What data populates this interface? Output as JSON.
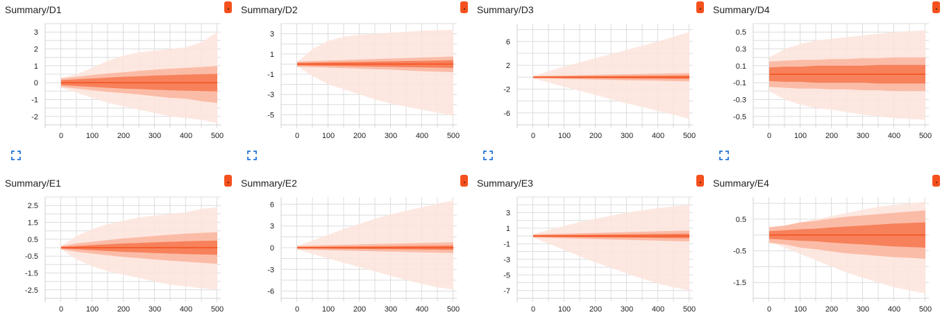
{
  "colors": {
    "accent": "#f4511e",
    "band_outer": "#fde4dc",
    "band_mid": "#f9a98f",
    "band_inner": "#f4511e"
  },
  "icons": {
    "badge": "caption-badge-icon",
    "expand": "fullscreen-expand-icon"
  },
  "chart_data": [
    {
      "type": "area",
      "title": "Summary/D1",
      "xlim": [
        0,
        500
      ],
      "ylim": [
        -2.5,
        3.5
      ],
      "x": [
        0,
        50,
        100,
        150,
        200,
        250,
        300,
        350,
        400,
        450,
        500
      ],
      "x_ticks": [
        0,
        100,
        200,
        300,
        400,
        500
      ],
      "y_ticks": [
        3,
        2,
        1,
        0,
        -1,
        -2
      ],
      "series": [
        {
          "upper": [
            0.3,
            0.5,
            0.9,
            1.3,
            1.6,
            1.8,
            1.9,
            2.0,
            2.1,
            2.4,
            3.0
          ],
          "lower": [
            -0.3,
            -0.6,
            -0.9,
            -1.2,
            -1.4,
            -1.6,
            -1.8,
            -2.0,
            -2.1,
            -2.2,
            -2.4
          ]
        },
        {
          "upper": [
            0.25,
            0.35,
            0.45,
            0.55,
            0.62,
            0.7,
            0.77,
            0.83,
            0.88,
            0.93,
            0.98
          ],
          "lower": [
            -0.25,
            -0.35,
            -0.45,
            -0.55,
            -0.62,
            -0.7,
            -0.8,
            -0.9,
            -0.95,
            -1.1,
            -1.2
          ]
        },
        {
          "upper": [
            0.15,
            0.2,
            0.25,
            0.3,
            0.35,
            0.38,
            0.42,
            0.45,
            0.48,
            0.5,
            0.52
          ],
          "lower": [
            -0.15,
            -0.2,
            -0.25,
            -0.3,
            -0.35,
            -0.38,
            -0.42,
            -0.45,
            -0.48,
            -0.5,
            -0.52
          ]
        }
      ]
    },
    {
      "type": "area",
      "title": "Summary/D2",
      "xlim": [
        0,
        500
      ],
      "ylim": [
        -6,
        4
      ],
      "x": [
        0,
        50,
        100,
        150,
        200,
        250,
        300,
        350,
        400,
        450,
        500
      ],
      "x_ticks": [
        0,
        100,
        200,
        300,
        400,
        500
      ],
      "y_ticks": [
        3,
        1,
        -1,
        -3,
        -5
      ],
      "series": [
        {
          "upper": [
            0.2,
            1.5,
            2.3,
            2.7,
            2.9,
            3.0,
            3.1,
            3.2,
            3.3,
            3.35,
            3.4
          ],
          "lower": [
            -0.2,
            -1.2,
            -2.0,
            -2.5,
            -3.0,
            -3.5,
            -3.9,
            -4.2,
            -4.5,
            -4.8,
            -5.1
          ]
        },
        {
          "upper": [
            0.25,
            0.3,
            0.35,
            0.4,
            0.45,
            0.5,
            0.55,
            0.6,
            0.65,
            0.7,
            0.75
          ],
          "lower": [
            -0.25,
            -0.3,
            -0.35,
            -0.4,
            -0.45,
            -0.5,
            -0.55,
            -0.62,
            -0.7,
            -0.75,
            -0.8
          ]
        },
        {
          "upper": [
            0.12,
            0.15,
            0.18,
            0.2,
            0.22,
            0.25,
            0.27,
            0.3,
            0.32,
            0.35,
            0.38
          ],
          "lower": [
            -0.12,
            -0.15,
            -0.18,
            -0.2,
            -0.22,
            -0.25,
            -0.27,
            -0.3,
            -0.32,
            -0.35,
            -0.38
          ]
        }
      ]
    },
    {
      "type": "area",
      "title": "Summary/D3",
      "xlim": [
        0,
        500
      ],
      "ylim": [
        -8,
        9
      ],
      "x": [
        0,
        50,
        100,
        150,
        200,
        250,
        300,
        350,
        400,
        450,
        500
      ],
      "x_ticks": [
        0,
        100,
        200,
        300,
        400,
        500
      ],
      "y_ticks": [
        6,
        2,
        -2,
        -6
      ],
      "series": [
        {
          "upper": [
            0.2,
            1.0,
            1.8,
            2.5,
            3.2,
            3.9,
            4.6,
            5.3,
            6.0,
            6.8,
            7.6
          ],
          "lower": [
            -0.2,
            -0.9,
            -1.6,
            -2.3,
            -3.0,
            -3.7,
            -4.4,
            -5.0,
            -5.7,
            -6.3,
            -7.0
          ]
        },
        {
          "upper": [
            0.2,
            0.25,
            0.3,
            0.35,
            0.4,
            0.45,
            0.5,
            0.55,
            0.6,
            0.65,
            0.7
          ],
          "lower": [
            -0.2,
            -0.25,
            -0.3,
            -0.35,
            -0.4,
            -0.45,
            -0.5,
            -0.55,
            -0.6,
            -0.65,
            -0.7
          ]
        },
        {
          "upper": [
            0.1,
            0.12,
            0.14,
            0.16,
            0.18,
            0.2,
            0.22,
            0.24,
            0.26,
            0.28,
            0.3
          ],
          "lower": [
            -0.1,
            -0.12,
            -0.14,
            -0.16,
            -0.18,
            -0.2,
            -0.22,
            -0.24,
            -0.26,
            -0.28,
            -0.3
          ]
        }
      ]
    },
    {
      "type": "area",
      "title": "Summary/D4",
      "xlim": [
        0,
        500
      ],
      "ylim": [
        -0.6,
        0.6
      ],
      "x": [
        0,
        50,
        100,
        150,
        200,
        250,
        300,
        350,
        400,
        450,
        500
      ],
      "x_ticks": [
        0,
        100,
        200,
        300,
        400,
        500
      ],
      "y_ticks": [
        0.5,
        0.3,
        0.1,
        -0.1,
        -0.3,
        -0.5
      ],
      "series": [
        {
          "upper": [
            0.2,
            0.3,
            0.36,
            0.4,
            0.42,
            0.44,
            0.46,
            0.48,
            0.5,
            0.51,
            0.52
          ],
          "lower": [
            -0.2,
            -0.3,
            -0.36,
            -0.4,
            -0.42,
            -0.45,
            -0.48,
            -0.5,
            -0.52,
            -0.53,
            -0.54
          ]
        },
        {
          "upper": [
            0.15,
            0.16,
            0.17,
            0.17,
            0.18,
            0.18,
            0.19,
            0.19,
            0.2,
            0.2,
            0.2
          ],
          "lower": [
            -0.15,
            -0.16,
            -0.17,
            -0.17,
            -0.18,
            -0.18,
            -0.19,
            -0.19,
            -0.2,
            -0.2,
            -0.2
          ]
        },
        {
          "upper": [
            0.08,
            0.09,
            0.09,
            0.1,
            0.1,
            0.1,
            0.1,
            0.11,
            0.11,
            0.11,
            0.11
          ],
          "lower": [
            -0.08,
            -0.09,
            -0.09,
            -0.1,
            -0.1,
            -0.1,
            -0.1,
            -0.11,
            -0.11,
            -0.11,
            -0.11
          ]
        }
      ]
    },
    {
      "type": "area",
      "title": "Summary/E1",
      "xlim": [
        0,
        500
      ],
      "ylim": [
        -3,
        3
      ],
      "x": [
        0,
        50,
        100,
        150,
        200,
        250,
        300,
        350,
        400,
        450,
        500
      ],
      "x_ticks": [
        0,
        100,
        200,
        300,
        400,
        500
      ],
      "y_ticks": [
        2.5,
        1.5,
        0.5,
        -0.5,
        -1.5,
        -2.5
      ],
      "series": [
        {
          "upper": [
            0.1,
            0.7,
            1.1,
            1.4,
            1.6,
            1.8,
            1.9,
            2.0,
            2.1,
            2.3,
            2.4
          ],
          "lower": [
            -0.1,
            -0.7,
            -1.1,
            -1.4,
            -1.6,
            -1.8,
            -2.0,
            -2.2,
            -2.3,
            -2.4,
            -2.5
          ]
        },
        {
          "upper": [
            0.1,
            0.25,
            0.35,
            0.45,
            0.55,
            0.62,
            0.7,
            0.77,
            0.83,
            0.88,
            0.92
          ],
          "lower": [
            -0.1,
            -0.25,
            -0.35,
            -0.45,
            -0.55,
            -0.62,
            -0.7,
            -0.77,
            -0.83,
            -0.9,
            -0.95
          ]
        },
        {
          "upper": [
            0.05,
            0.1,
            0.15,
            0.2,
            0.25,
            0.28,
            0.32,
            0.35,
            0.38,
            0.4,
            0.42
          ],
          "lower": [
            -0.05,
            -0.1,
            -0.15,
            -0.2,
            -0.25,
            -0.28,
            -0.32,
            -0.35,
            -0.38,
            -0.4,
            -0.42
          ]
        }
      ]
    },
    {
      "type": "area",
      "title": "Summary/E2",
      "xlim": [
        0,
        500
      ],
      "ylim": [
        -7,
        7
      ],
      "x": [
        0,
        50,
        100,
        150,
        200,
        250,
        300,
        350,
        400,
        450,
        500
      ],
      "x_ticks": [
        0,
        100,
        200,
        300,
        400,
        500
      ],
      "y_ticks": [
        6,
        3,
        0,
        -3,
        -6
      ],
      "series": [
        {
          "upper": [
            0.2,
            1.0,
            1.8,
            2.6,
            3.3,
            4.0,
            4.6,
            5.1,
            5.6,
            6.1,
            6.5
          ],
          "lower": [
            -0.2,
            -0.9,
            -1.5,
            -2.1,
            -2.7,
            -3.3,
            -3.9,
            -4.5,
            -5.0,
            -5.5,
            -5.8
          ]
        },
        {
          "upper": [
            0.25,
            0.3,
            0.35,
            0.4,
            0.45,
            0.5,
            0.55,
            0.6,
            0.65,
            0.7,
            0.75
          ],
          "lower": [
            -0.25,
            -0.3,
            -0.35,
            -0.4,
            -0.45,
            -0.5,
            -0.55,
            -0.6,
            -0.65,
            -0.7,
            -0.75
          ]
        },
        {
          "upper": [
            0.1,
            0.12,
            0.14,
            0.16,
            0.18,
            0.2,
            0.22,
            0.24,
            0.26,
            0.28,
            0.3
          ],
          "lower": [
            -0.1,
            -0.12,
            -0.14,
            -0.16,
            -0.18,
            -0.2,
            -0.22,
            -0.24,
            -0.26,
            -0.28,
            -0.3
          ]
        }
      ]
    },
    {
      "type": "area",
      "title": "Summary/E3",
      "xlim": [
        0,
        500
      ],
      "ylim": [
        -8,
        5
      ],
      "x": [
        0,
        50,
        100,
        150,
        200,
        250,
        300,
        350,
        400,
        450,
        500
      ],
      "x_ticks": [
        0,
        100,
        200,
        300,
        400,
        500
      ],
      "y_ticks": [
        3,
        1,
        -1,
        -3,
        -5,
        -7
      ],
      "series": [
        {
          "upper": [
            0.2,
            0.8,
            1.3,
            1.8,
            2.2,
            2.6,
            3.0,
            3.3,
            3.6,
            3.8,
            4.0
          ],
          "lower": [
            -0.2,
            -1.0,
            -1.8,
            -2.6,
            -3.4,
            -4.1,
            -4.8,
            -5.5,
            -6.1,
            -6.6,
            -7.0
          ]
        },
        {
          "upper": [
            0.2,
            0.25,
            0.3,
            0.35,
            0.4,
            0.45,
            0.5,
            0.55,
            0.6,
            0.65,
            0.7
          ],
          "lower": [
            -0.2,
            -0.25,
            -0.3,
            -0.35,
            -0.4,
            -0.45,
            -0.5,
            -0.55,
            -0.6,
            -0.65,
            -0.7
          ]
        },
        {
          "upper": [
            0.1,
            0.12,
            0.14,
            0.16,
            0.18,
            0.2,
            0.22,
            0.24,
            0.26,
            0.28,
            0.3
          ],
          "lower": [
            -0.1,
            -0.12,
            -0.14,
            -0.16,
            -0.18,
            -0.2,
            -0.22,
            -0.24,
            -0.26,
            -0.28,
            -0.3
          ]
        }
      ]
    },
    {
      "type": "area",
      "title": "Summary/E4",
      "xlim": [
        0,
        500
      ],
      "ylim": [
        -2,
        1.2
      ],
      "x": [
        0,
        50,
        100,
        150,
        200,
        250,
        300,
        350,
        400,
        450,
        500
      ],
      "x_ticks": [
        0,
        100,
        200,
        300,
        400,
        500
      ],
      "y_ticks": [
        0.5,
        -0.5,
        -1.5
      ],
      "series": [
        {
          "upper": [
            0.2,
            0.3,
            0.4,
            0.5,
            0.6,
            0.7,
            0.8,
            0.9,
            0.95,
            1.0,
            1.05
          ],
          "lower": [
            -0.2,
            -0.4,
            -0.6,
            -0.8,
            -1.0,
            -1.2,
            -1.35,
            -1.5,
            -1.65,
            -1.75,
            -1.85
          ]
        },
        {
          "upper": [
            0.25,
            0.3,
            0.4,
            0.45,
            0.52,
            0.58,
            0.62,
            0.66,
            0.7,
            0.74,
            0.78
          ],
          "lower": [
            -0.25,
            -0.3,
            -0.4,
            -0.45,
            -0.52,
            -0.58,
            -0.62,
            -0.66,
            -0.7,
            -0.72,
            -0.75
          ]
        },
        {
          "upper": [
            0.12,
            0.15,
            0.18,
            0.2,
            0.24,
            0.27,
            0.3,
            0.33,
            0.36,
            0.38,
            0.4
          ],
          "lower": [
            -0.12,
            -0.15,
            -0.18,
            -0.2,
            -0.24,
            -0.27,
            -0.3,
            -0.33,
            -0.36,
            -0.38,
            -0.4
          ]
        }
      ]
    }
  ]
}
